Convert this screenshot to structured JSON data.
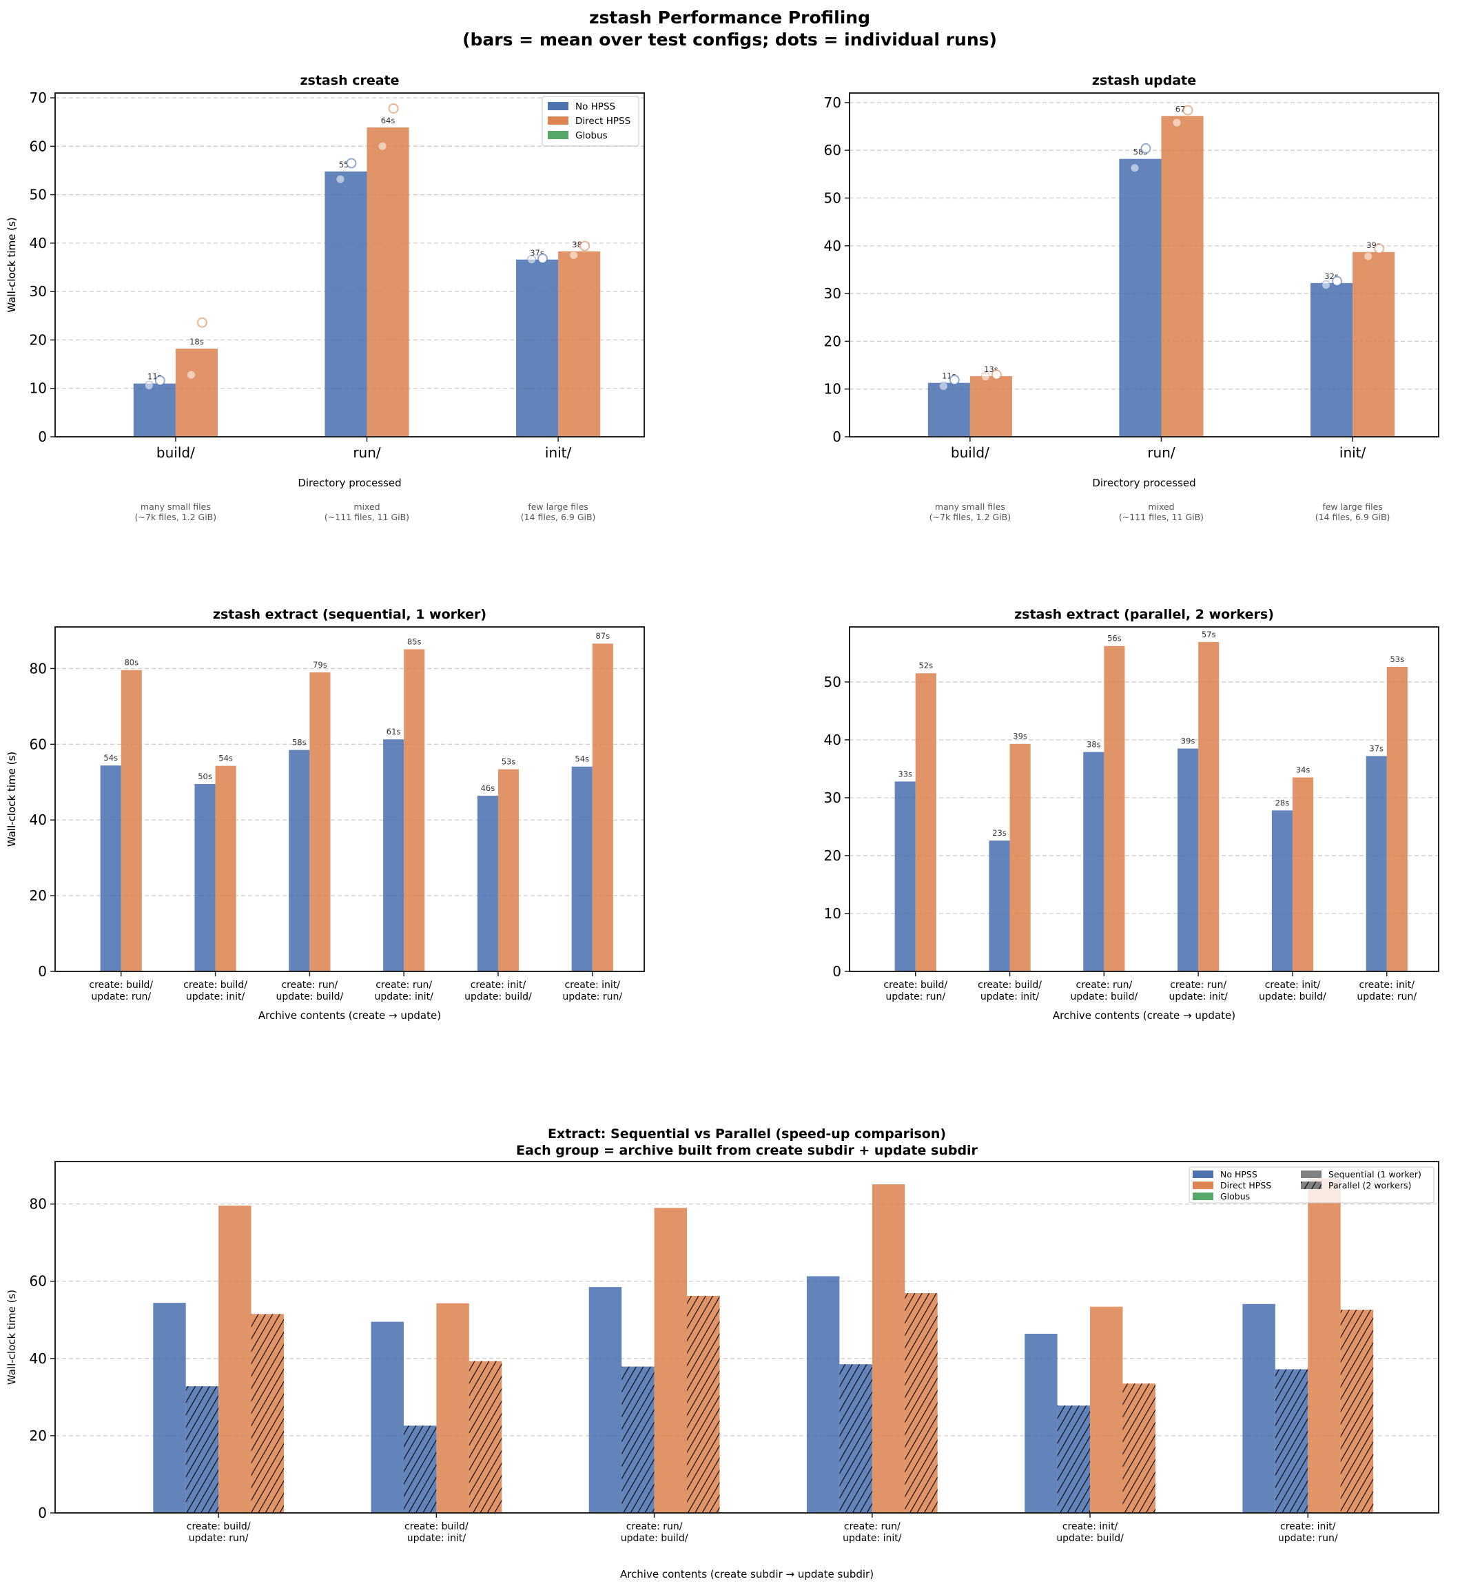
{
  "figure": {
    "title_line1": "zstash Performance Profiling",
    "title_line2": "(bars = mean over test configs; dots = individual runs)"
  },
  "colors": {
    "no_hpss": "#4c72b0",
    "direct_hpss": "#dd8452",
    "globus": "#55a868",
    "grid": "#cccccc",
    "sequential_legend": "#808080"
  },
  "chart_data": [
    {
      "id": "create",
      "type": "bar",
      "title": "zstash create",
      "xlabel": "Directory processed",
      "ylabel": "Wall-clock time (s)",
      "ylim": [
        0,
        71
      ],
      "yticks": [
        0,
        10,
        20,
        30,
        40,
        50,
        60,
        70
      ],
      "grid": true,
      "legend": {
        "placement": "top-right",
        "entries": [
          "No HPSS",
          "Direct HPSS",
          "Globus"
        ]
      },
      "categories": [
        "build/",
        "run/",
        "init/"
      ],
      "category_notes": [
        [
          "many small files",
          "(~7k files, 1.2 GiB)"
        ],
        [
          "mixed",
          "(~111 files, 11 GiB)"
        ],
        [
          "few large files",
          "(14 files, 6.9 GiB)"
        ]
      ],
      "series": [
        {
          "name": "No HPSS",
          "values": [
            11.0,
            54.8,
            36.6
          ],
          "labels": [
            "11s",
            "55s",
            "37s"
          ],
          "runs_filled": [
            10.6,
            53.2,
            36.6
          ],
          "runs_open": [
            11.6,
            56.5,
            36.8
          ]
        },
        {
          "name": "Direct HPSS",
          "values": [
            18.2,
            63.9,
            38.3
          ],
          "labels": [
            "18s",
            "64s",
            "38s"
          ],
          "runs_filled": [
            12.8,
            60.0,
            37.5
          ],
          "runs_open": [
            23.6,
            67.8,
            39.4
          ]
        },
        {
          "name": "Globus",
          "values": [
            null,
            null,
            null
          ],
          "labels": [
            "",
            "",
            ""
          ]
        }
      ]
    },
    {
      "id": "update",
      "type": "bar",
      "title": "zstash update",
      "xlabel": "Directory processed",
      "ylabel": "Wall-clock time (s)",
      "ylim": [
        0,
        72
      ],
      "yticks": [
        0,
        10,
        20,
        30,
        40,
        50,
        60,
        70
      ],
      "grid": true,
      "categories": [
        "build/",
        "run/",
        "init/"
      ],
      "category_notes": [
        [
          "many small files",
          "(~7k files, 1.2 GiB)"
        ],
        [
          "mixed",
          "(~111 files, 11 GiB)"
        ],
        [
          "few large files",
          "(14 files, 6.9 GiB)"
        ]
      ],
      "series": [
        {
          "name": "No HPSS",
          "values": [
            11.3,
            58.2,
            32.2
          ],
          "labels": [
            "11s",
            "58s",
            "32s"
          ],
          "runs_filled": [
            10.6,
            56.3,
            31.8
          ],
          "runs_open": [
            11.9,
            60.4,
            32.6
          ]
        },
        {
          "name": "Direct HPSS",
          "values": [
            12.7,
            67.2,
            38.7
          ],
          "labels": [
            "13s",
            "67s",
            "39s"
          ],
          "runs_filled": [
            12.6,
            65.8,
            37.8
          ],
          "runs_open": [
            13.0,
            68.4,
            39.4
          ]
        },
        {
          "name": "Globus",
          "values": [
            null,
            null,
            null
          ],
          "labels": [
            "",
            "",
            ""
          ]
        }
      ]
    },
    {
      "id": "extract_seq",
      "type": "bar",
      "title": "zstash extract  (sequential, 1 worker)",
      "xlabel": "Archive contents (create → update)",
      "ylabel": "Wall-clock time (s)",
      "ylim": [
        0,
        91
      ],
      "yticks": [
        0,
        20,
        40,
        60,
        80
      ],
      "grid": true,
      "categories": [
        [
          "create: build/",
          "update: run/"
        ],
        [
          "create: build/",
          "update: init/"
        ],
        [
          "create: run/",
          "update: build/"
        ],
        [
          "create: run/",
          "update: init/"
        ],
        [
          "create: init/",
          "update: build/"
        ],
        [
          "create: init/",
          "update: run/"
        ]
      ],
      "series": [
        {
          "name": "No HPSS",
          "values": [
            54.4,
            49.5,
            58.5,
            61.3,
            46.4,
            54.1
          ],
          "labels": [
            "54s",
            "50s",
            "58s",
            "61s",
            "46s",
            "54s"
          ]
        },
        {
          "name": "Direct HPSS",
          "values": [
            79.6,
            54.3,
            79.0,
            85.1,
            53.4,
            86.6
          ],
          "labels": [
            "80s",
            "54s",
            "79s",
            "85s",
            "53s",
            "87s"
          ]
        },
        {
          "name": "Globus",
          "values": [
            null,
            null,
            null,
            null,
            null,
            null
          ]
        }
      ]
    },
    {
      "id": "extract_par",
      "type": "bar",
      "title": "zstash extract  (parallel, 2 workers)",
      "xlabel": "Archive contents (create → update)",
      "ylabel": "Wall-clock time (s)",
      "ylim": [
        0,
        59.5
      ],
      "yticks": [
        0,
        10,
        20,
        30,
        40,
        50
      ],
      "grid": true,
      "categories": [
        [
          "create: build/",
          "update: run/"
        ],
        [
          "create: build/",
          "update: init/"
        ],
        [
          "create: run/",
          "update: build/"
        ],
        [
          "create: run/",
          "update: init/"
        ],
        [
          "create: init/",
          "update: build/"
        ],
        [
          "create: init/",
          "update: run/"
        ]
      ],
      "series": [
        {
          "name": "No HPSS",
          "values": [
            32.8,
            22.6,
            37.9,
            38.5,
            27.8,
            37.2
          ],
          "labels": [
            "33s",
            "23s",
            "38s",
            "39s",
            "28s",
            "37s"
          ]
        },
        {
          "name": "Direct HPSS",
          "values": [
            51.5,
            39.3,
            56.2,
            56.9,
            33.5,
            52.6
          ],
          "labels": [
            "52s",
            "39s",
            "56s",
            "57s",
            "34s",
            "53s"
          ]
        },
        {
          "name": "Globus",
          "values": [
            null,
            null,
            null,
            null,
            null,
            null
          ]
        }
      ]
    },
    {
      "id": "speedup",
      "type": "bar",
      "title_line1": "Extract: Sequential vs Parallel (speed-up comparison)",
      "title_line2": "Each group = archive built from create subdir + update subdir",
      "xlabel": "Archive contents (create subdir → update subdir)",
      "ylabel": "Wall-clock time (s)",
      "ylim": [
        0,
        91
      ],
      "yticks": [
        0,
        20,
        40,
        60,
        80
      ],
      "grid": true,
      "legend": {
        "placement": "top-right",
        "entries": [
          "No HPSS",
          "Direct HPSS",
          "Globus",
          "Sequential (1 worker)",
          "Parallel (2 workers)"
        ]
      },
      "categories": [
        [
          "create: build/",
          "update: run/"
        ],
        [
          "create: build/",
          "update: init/"
        ],
        [
          "create: run/",
          "update: build/"
        ],
        [
          "create: run/",
          "update: init/"
        ],
        [
          "create: init/",
          "update: build/"
        ],
        [
          "create: init/",
          "update: run/"
        ]
      ],
      "series": [
        {
          "name": "No HPSS — Sequential",
          "method": "No HPSS",
          "mode": "sequential",
          "values": [
            54.4,
            49.5,
            58.5,
            61.3,
            46.4,
            54.1
          ]
        },
        {
          "name": "No HPSS — Parallel",
          "method": "No HPSS",
          "mode": "parallel",
          "values": [
            32.8,
            22.6,
            37.9,
            38.5,
            27.8,
            37.2
          ]
        },
        {
          "name": "Direct HPSS — Sequential",
          "method": "Direct HPSS",
          "mode": "sequential",
          "values": [
            79.6,
            54.3,
            79.0,
            85.1,
            53.4,
            86.6
          ]
        },
        {
          "name": "Direct HPSS — Parallel",
          "method": "Direct HPSS",
          "mode": "parallel",
          "values": [
            51.5,
            39.3,
            56.2,
            56.9,
            33.5,
            52.6
          ]
        }
      ]
    }
  ]
}
